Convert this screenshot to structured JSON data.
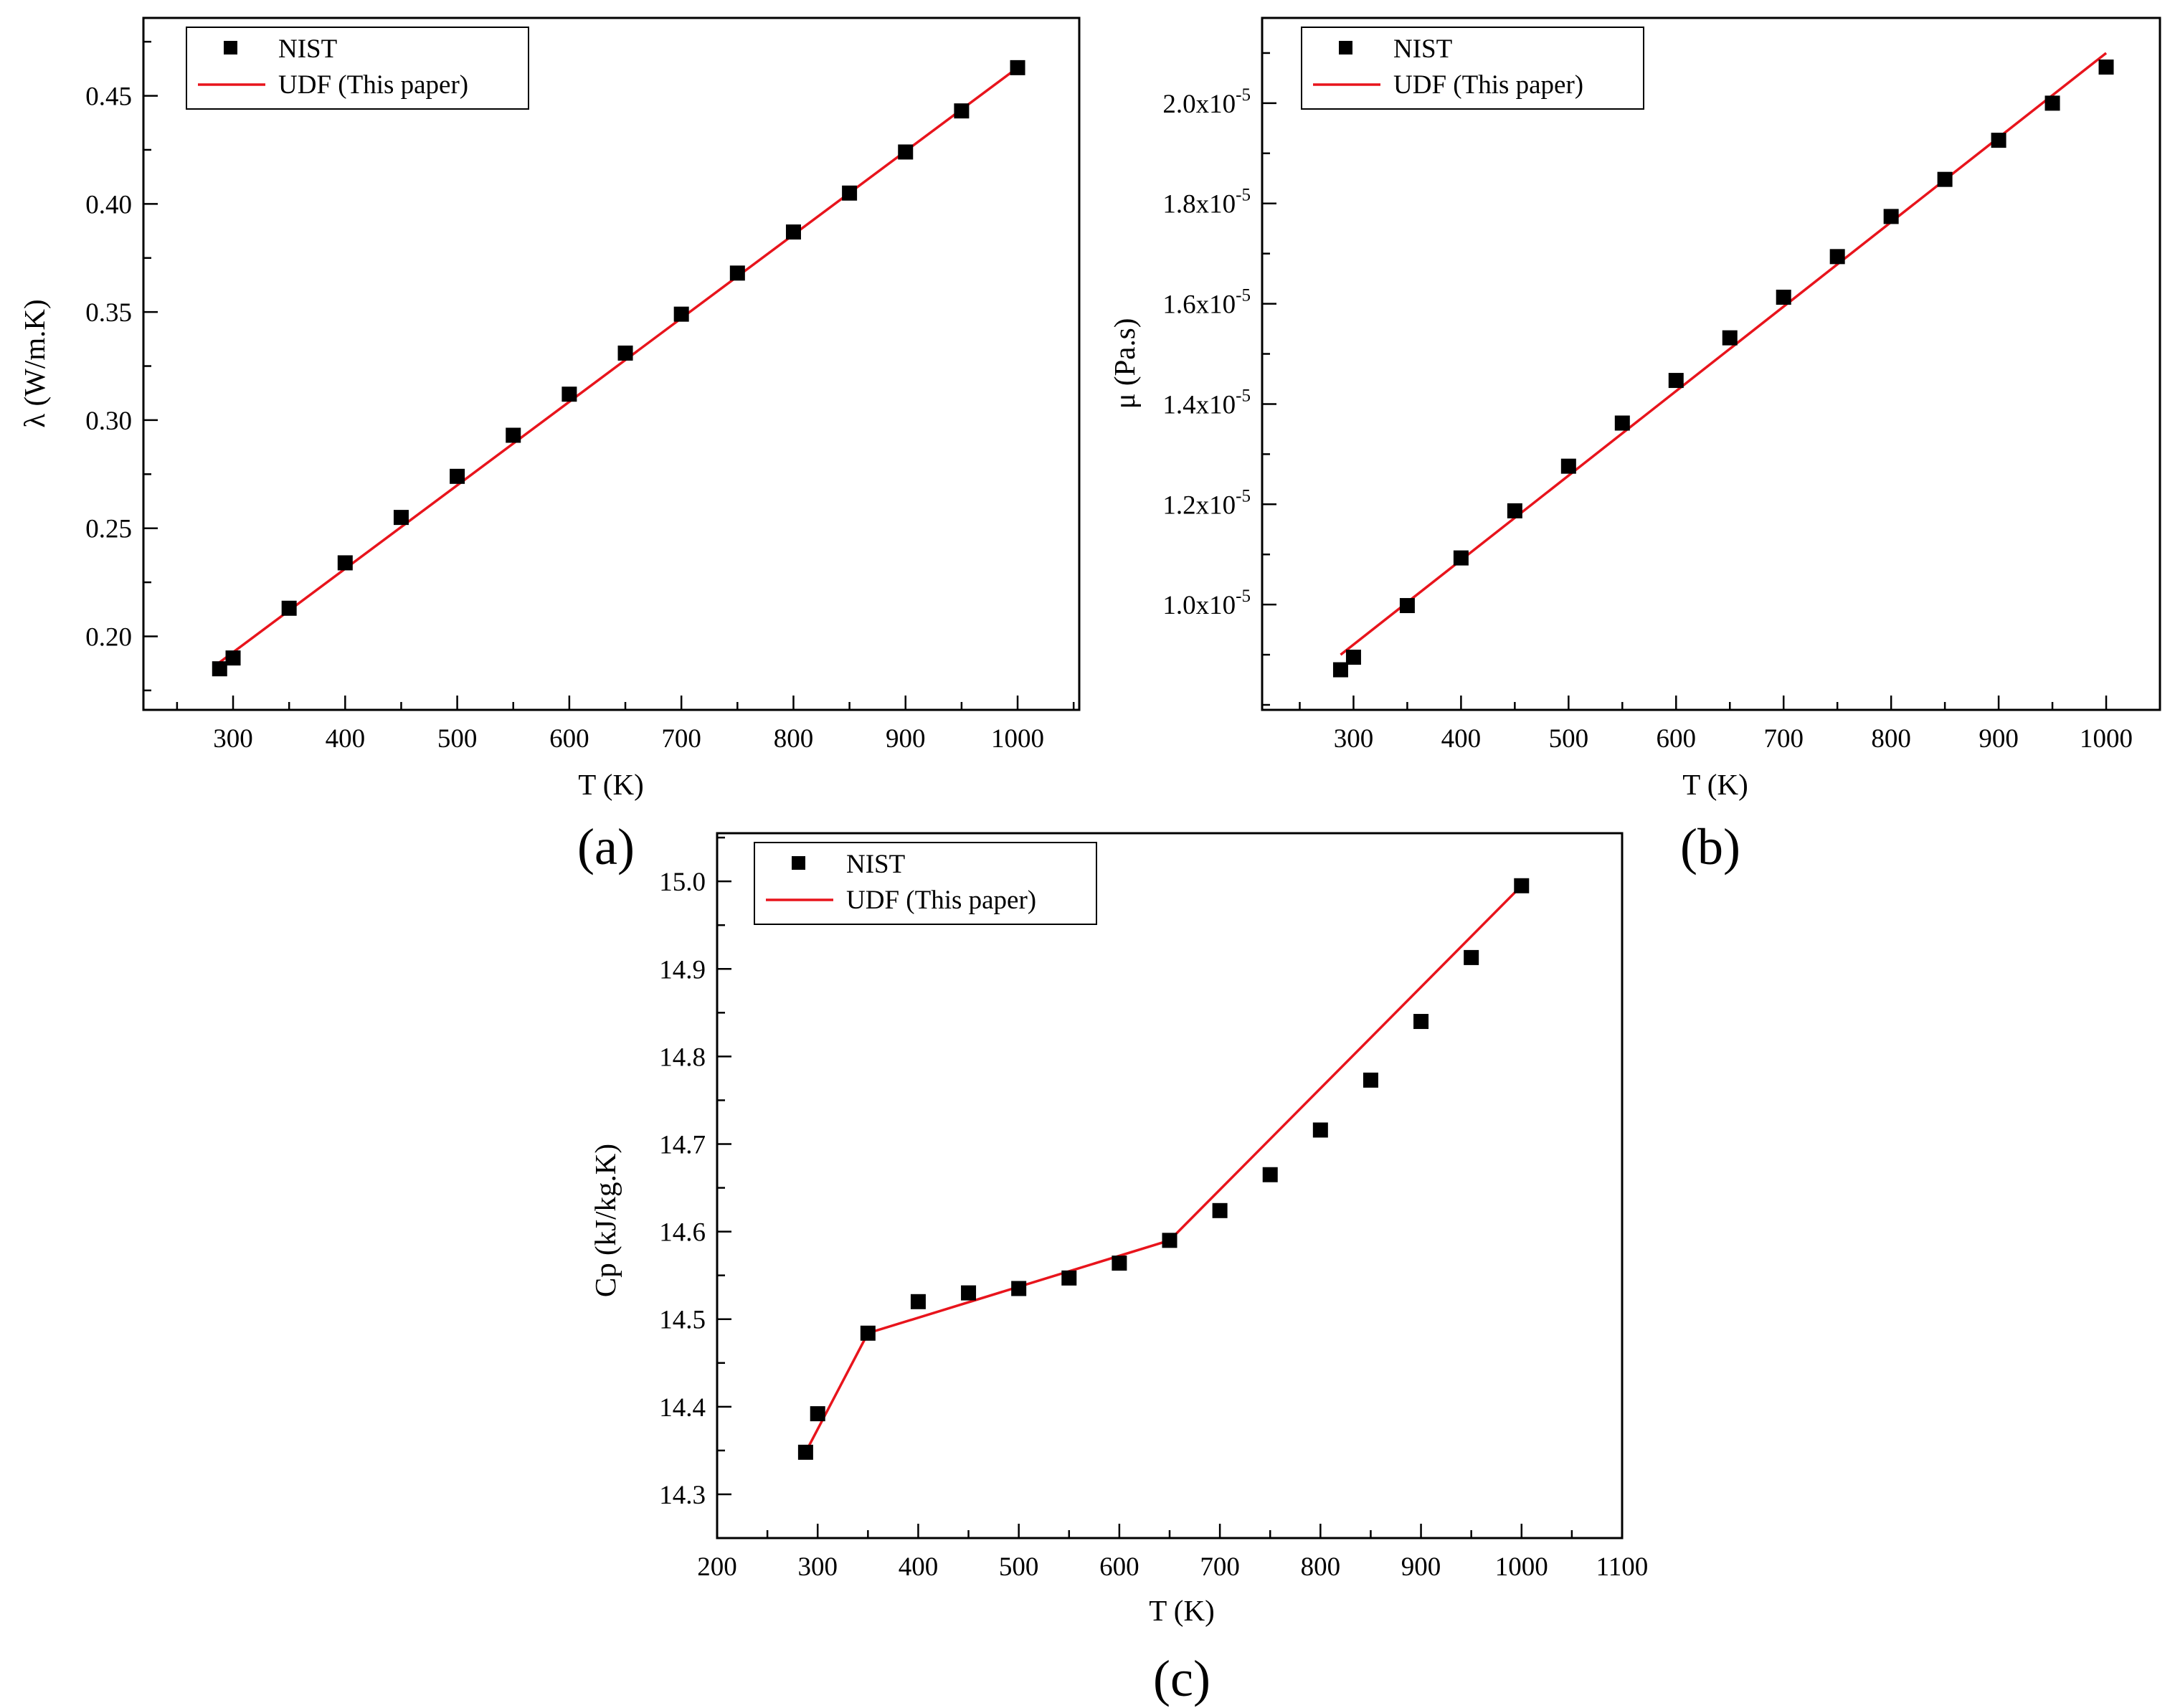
{
  "colors": {
    "line": "#e8141c",
    "marker": "#000000",
    "frame": "#000000",
    "background": "#ffffff"
  },
  "legend": {
    "nist_label": "NIST",
    "udf_label": "UDF (This paper)"
  },
  "chart_data": [
    {
      "id": "a",
      "type": "line",
      "panel_label": "(a)",
      "title": "",
      "xlabel": "T (K)",
      "ylabel": "λ (W/m.K)",
      "xlim": [
        220,
        1055
      ],
      "ylim": [
        0.166,
        0.486
      ],
      "xticks": [
        300,
        400,
        500,
        600,
        700,
        800,
        900,
        1000
      ],
      "xtick_labels": [
        "300",
        "400",
        "500",
        "600",
        "700",
        "800",
        "900",
        "1000"
      ],
      "x_minor": 50,
      "yticks": [
        0.2,
        0.25,
        0.3,
        0.35,
        0.4,
        0.45
      ],
      "ytick_labels": [
        "0.20",
        "0.25",
        "0.30",
        "0.35",
        "0.40",
        "0.45"
      ],
      "y_minor": 0.025,
      "legend_position": "top-left",
      "series": [
        {
          "name": "NIST",
          "kind": "scatter",
          "x": [
            288,
            300,
            350,
            400,
            450,
            500,
            550,
            600,
            650,
            700,
            750,
            800,
            850,
            900,
            950,
            1000
          ],
          "y": [
            0.185,
            0.19,
            0.213,
            0.234,
            0.255,
            0.274,
            0.293,
            0.312,
            0.331,
            0.349,
            0.368,
            0.387,
            0.405,
            0.424,
            0.443,
            0.463
          ]
        },
        {
          "name": "UDF (This paper)",
          "kind": "line",
          "x": [
            288,
            1000
          ],
          "y": [
            0.188,
            0.463
          ]
        }
      ]
    },
    {
      "id": "b",
      "type": "line",
      "panel_label": "(b)",
      "title": "",
      "xlabel": "T (K)",
      "ylabel": "μ (Pa.s)",
      "xlim": [
        215,
        1050
      ],
      "ylim": [
        7.9e-06,
        2.17e-05
      ],
      "xticks": [
        300,
        400,
        500,
        600,
        700,
        800,
        900,
        1000
      ],
      "xtick_labels": [
        "300",
        "400",
        "500",
        "600",
        "700",
        "800",
        "900",
        "1000"
      ],
      "x_minor": 50,
      "yticks": [
        1e-05,
        1.2e-05,
        1.4e-05,
        1.6e-05,
        1.8e-05,
        2e-05
      ],
      "ytick_mantissas": [
        "1.0x10",
        "1.2x10",
        "1.4x10",
        "1.6x10",
        "1.8x10",
        "2.0x10"
      ],
      "ytick_exponent": "-5",
      "y_minor": 1e-06,
      "legend_position": "top-left",
      "series": [
        {
          "name": "NIST",
          "kind": "scatter",
          "x": [
            288,
            300,
            350,
            400,
            450,
            500,
            550,
            600,
            650,
            700,
            750,
            800,
            850,
            900,
            950,
            1000
          ],
          "y": [
            8.7e-06,
            8.95e-06,
            9.98e-06,
            1.093e-05,
            1.187e-05,
            1.276e-05,
            1.362e-05,
            1.447e-05,
            1.532e-05,
            1.613e-05,
            1.694e-05,
            1.774e-05,
            1.848e-05,
            1.926e-05,
            2e-05,
            2.072e-05
          ]
        },
        {
          "name": "UDF (This paper)",
          "kind": "line",
          "x": [
            288,
            1000
          ],
          "y": [
            9e-06,
            2.1e-05
          ]
        }
      ]
    },
    {
      "id": "c",
      "type": "line",
      "panel_label": "(c)",
      "title": "",
      "xlabel": "T (K)",
      "ylabel": "Cp (kJ/kg.K)",
      "xlim": [
        200,
        1100
      ],
      "ylim": [
        14.25,
        15.055
      ],
      "xticks": [
        200,
        300,
        400,
        500,
        600,
        700,
        800,
        900,
        1000,
        1100
      ],
      "xtick_labels": [
        "200",
        "300",
        "400",
        "500",
        "600",
        "700",
        "800",
        "900",
        "1000",
        "1100"
      ],
      "x_minor": 50,
      "yticks": [
        14.3,
        14.4,
        14.5,
        14.6,
        14.7,
        14.8,
        14.9,
        15.0
      ],
      "ytick_labels": [
        "14.3",
        "14.4",
        "14.5",
        "14.6",
        "14.7",
        "14.8",
        "14.9",
        "15.0"
      ],
      "y_minor": 0.05,
      "legend_position": "top-left",
      "series": [
        {
          "name": "NIST",
          "kind": "scatter",
          "x": [
            288,
            300,
            350,
            400,
            450,
            500,
            550,
            600,
            650,
            700,
            750,
            800,
            850,
            900,
            950,
            1000
          ],
          "y": [
            14.348,
            14.392,
            14.484,
            14.52,
            14.53,
            14.535,
            14.547,
            14.564,
            14.59,
            14.624,
            14.665,
            14.716,
            14.773,
            14.84,
            14.913,
            14.995
          ]
        },
        {
          "name": "UDF (This paper)",
          "kind": "line",
          "x": [
            288,
            350,
            650,
            1000
          ],
          "y": [
            14.348,
            14.484,
            14.59,
            14.995
          ]
        }
      ]
    }
  ]
}
